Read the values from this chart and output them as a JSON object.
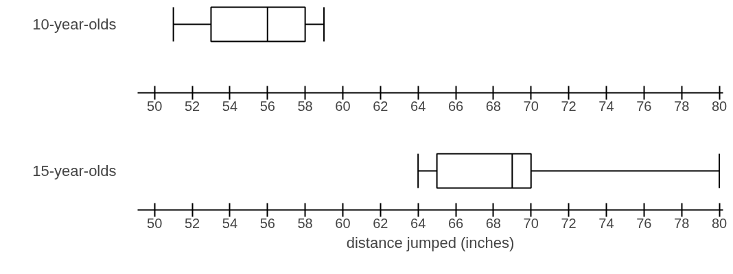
{
  "chart_data": [
    {
      "type": "box",
      "orientation": "horizontal",
      "categories": [
        "10-year-olds"
      ],
      "boxes": [
        {
          "low": 51,
          "q1": 53,
          "median": 56,
          "q3": 58,
          "high": 59
        }
      ],
      "xlim": [
        49.1,
        80.2
      ],
      "xticks": [
        50,
        52,
        54,
        56,
        58,
        60,
        62,
        64,
        66,
        68,
        70,
        72,
        74,
        76,
        78,
        80
      ],
      "grid": false
    },
    {
      "type": "box",
      "orientation": "horizontal",
      "categories": [
        "15-year-olds"
      ],
      "boxes": [
        {
          "low": 64,
          "q1": 65,
          "median": 69,
          "q3": 70,
          "high": 80
        }
      ],
      "xlim": [
        49.1,
        80.2
      ],
      "xticks": [
        50,
        52,
        54,
        56,
        58,
        60,
        62,
        64,
        66,
        68,
        70,
        72,
        74,
        76,
        78,
        80
      ],
      "xlabel": "distance jumped (inches)",
      "grid": false
    }
  ]
}
